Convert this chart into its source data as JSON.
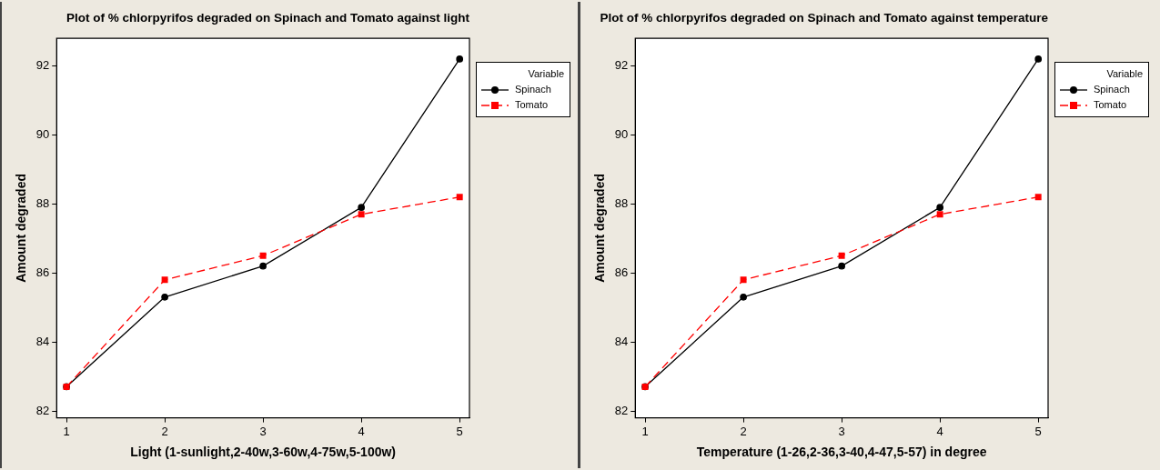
{
  "chart_data": [
    {
      "type": "line",
      "title": "Plot of % chlorpyrifos degraded on Spinach and Tomato against light",
      "xlabel": "Light (1-sunlight,2-40w,3-60w,4-75w,5-100w)",
      "ylabel": "Amount degraded",
      "legend_title": "Variable",
      "legend": "top right",
      "grid": false,
      "x": [
        1,
        2,
        3,
        4,
        5
      ],
      "xlim": [
        0.9,
        5.1
      ],
      "xticks": [
        1,
        2,
        3,
        4,
        5
      ],
      "ylim": [
        81.8,
        92.8
      ],
      "yticks": [
        82,
        84,
        86,
        88,
        90,
        92
      ],
      "series": [
        {
          "name": "Spinach",
          "color": "#000000",
          "values": [
            82.7,
            85.3,
            86.2,
            87.9,
            92.2
          ],
          "marker": "circle",
          "line_style": "solid"
        },
        {
          "name": "Tomato",
          "color": "#ff0000",
          "values": [
            82.7,
            85.8,
            86.5,
            87.7,
            88.2
          ],
          "marker": "square",
          "line_style": "dashed"
        }
      ]
    },
    {
      "type": "line",
      "title": "Plot of % chlorpyrifos degraded on Spinach and Tomato against temperature",
      "xlabel": "Temperature (1-26,2-36,3-40,4-47,5-57) in degree",
      "ylabel": "Amount degraded",
      "legend_title": "Variable",
      "legend": "top right",
      "grid": false,
      "x": [
        1,
        2,
        3,
        4,
        5
      ],
      "xlim": [
        0.9,
        5.1
      ],
      "xticks": [
        1,
        2,
        3,
        4,
        5
      ],
      "ylim": [
        81.8,
        92.8
      ],
      "yticks": [
        82,
        84,
        86,
        88,
        90,
        92
      ],
      "series": [
        {
          "name": "Spinach",
          "color": "#000000",
          "values": [
            82.7,
            85.3,
            86.2,
            87.9,
            92.2
          ],
          "marker": "circle",
          "line_style": "solid"
        },
        {
          "name": "Tomato",
          "color": "#ff0000",
          "values": [
            82.7,
            85.8,
            86.5,
            87.7,
            88.2
          ],
          "marker": "square",
          "line_style": "dashed"
        }
      ]
    }
  ]
}
